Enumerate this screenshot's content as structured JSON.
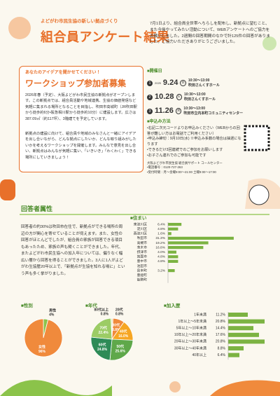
{
  "header": {
    "kicker": "よどがわ市民生協の新しい拠点づくり",
    "title": "組合員アンケート結果"
  },
  "intro": "7月1日より、組合員全世帯へちらしを配布し、新拠点に望むこと、また今後やってみたい活動について、WEBアンケートへのご協力をお願いしました。2週間の回答期間のなかで計125件の回答がありました。ご協力いただきありがとうございました。",
  "workshop": {
    "lead": "あなたのアイデアを聞かせてください！",
    "title": "ワークショップ参加者募集",
    "paragraphs": [
      "2026年春（予定）、大阪よどがわ市民生協の新拠点がオープンします。この新拠点では、組合員活動や地域連携、生協の価値発信など気軽に集まれる場所となることを目指し、吹田市高城町（JR吹田駅から徒歩約6分・阪急相川駅から徒歩約10分）に建設します。広さは387.09㎡（約117坪）、3階建てを予定しています。",
      "新拠点の建設に向けて、組合員や地域のみなさんと一緒にアイデアを出し合いながら、どんな拠点にしたいか、どんな取り組みがしたいかを考えるワークショップを開催します。みんなで意見を出し合い、新拠点はみんなが気軽に集い、「いきいき」「わくわく」できる場所にしていきましょう！"
    ]
  },
  "schedule": {
    "heading": "■開催日",
    "sessions": [
      {
        "number": "1",
        "year": "2025",
        "date": "9.24",
        "weekday": "水",
        "time": "10:30～13:00",
        "venue": "吹田さんくすホール"
      },
      {
        "number": "2",
        "date": "10.28",
        "weekday": "火",
        "time": "10:30～13:00",
        "venue": "吹田さんくすホール"
      },
      {
        "number": "3",
        "date": "11.26",
        "weekday": "水",
        "time": "10:30～13:00",
        "venue": "吹田市立内本町コミュニティセンター"
      }
    ]
  },
  "application": {
    "heading": "■申込み方法",
    "items": [
      "・右記二次元コードよりお申込みください（WEBからの回答が難しい方はお電話でご利用ください）",
      "・申込み締切：9月10日(水) ※申込み多数の場合は抽選になります",
      "・できるだけ3回連続でのご参加をお願いします",
      "・お子さん連れでのご参加も可能です"
    ],
    "contact": [
      "大阪よどがわ市民生協 組合員サポート コールセンター",
      "・電話番号：0120-727-263",
      "・受付時間：月～金曜9:00～21:00 土曜9:00～17:00"
    ]
  },
  "respondents": {
    "heading": "回答者属性",
    "text": "回答者の約30%は吹田市在住で、新拠点ができる場所の周辺の方が関心を寄せていることが伺えます。また、女性の回答がほとんどでしたが、組合員の家族が回答できる項目もあったため、家族の声も聞くことができました。年代、またよどがわ市民生協への加入年については、偏りなく幅広い層から回答を得ることができました。3人に1人がよどがわ生協歴20年以上で、「新拠点が生協を知れる場に」という声も多く挙がりました。"
  },
  "residence": {
    "title": "■住まい",
    "categories": [
      "東淀川区",
      "淀川区",
      "西淀川区",
      "吹田市",
      "高槻市",
      "茨木市",
      "摂津市",
      "箕面市",
      "豊中市",
      "池田市",
      "島本町",
      "豊能町",
      "能勢町"
    ],
    "values": [
      6.4,
      4.8,
      1.6,
      31.3,
      19.2,
      16.8,
      4.0,
      4.8,
      4.8,
      null,
      3.2,
      null,
      null
    ],
    "value_labels": [
      "6.4%",
      "4.8%",
      "1.6%",
      "31.3%",
      "19.2%",
      "16.8%",
      "4.0%",
      "4.8%",
      "4.8%",
      null,
      "3.2%",
      null,
      null
    ],
    "color": "#7cb342"
  },
  "gender": {
    "title": "■性別",
    "categories": [
      "男性",
      "女性"
    ],
    "values": [
      4,
      96
    ],
    "value_labels": [
      "4%",
      "96%"
    ],
    "colors": [
      "#8bc34a",
      "#f08a3c"
    ]
  },
  "age": {
    "title": "■年代",
    "categories": [
      "20代",
      "30代",
      "40代",
      "50代",
      "60代",
      "70代",
      "80代以上"
    ],
    "values": [
      0.8,
      8.8,
      16.0,
      25.6,
      24.8,
      22.4,
      0.8
    ],
    "value_labels": [
      "0.8%",
      "8.8%",
      "16.0%",
      "25.6%",
      "24.8%",
      "22.4%",
      "0.8%"
    ],
    "colors": [
      "#f5b97a",
      "#f08a3c",
      "#f6a623",
      "#5fa84a",
      "#2e8b57",
      "#9ccc65",
      "#c5e1a5"
    ]
  },
  "membership": {
    "title": "■加入歴",
    "categories": [
      "1年未満",
      "1年以上～5年未満",
      "5年以上～10年未満",
      "10年以上～20年未満",
      "20年以上～30年未満",
      "30年以上～40年未満",
      "40年以上"
    ],
    "values": [
      11.2,
      20.8,
      14.4,
      17.6,
      20.8,
      8.8,
      6.4
    ],
    "value_labels": [
      "11.2%",
      "20.8%",
      "14.4%",
      "17.6%",
      "20.8%",
      "8.8%",
      "6.4%"
    ],
    "color": "#7cb342"
  }
}
